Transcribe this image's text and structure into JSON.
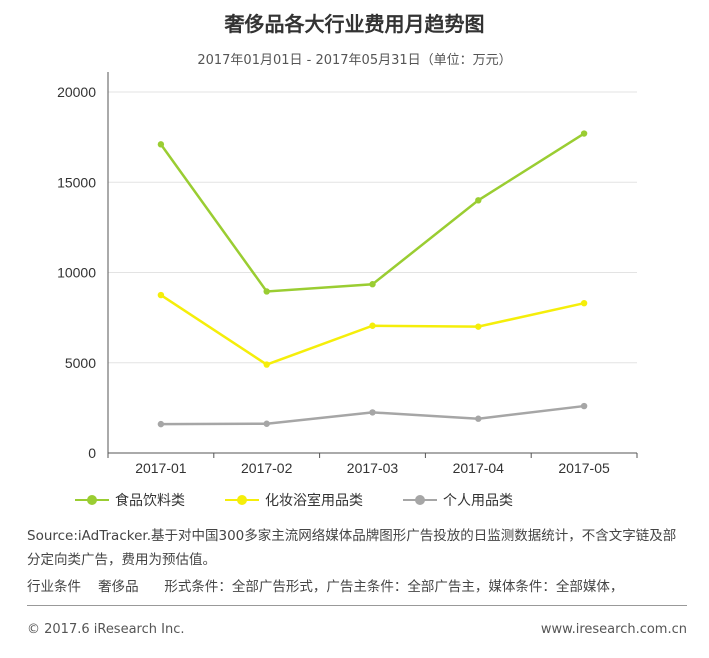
{
  "header": {
    "title": "奢侈品各大行业费用月趋势图",
    "subtitle": "2017年01月01日 - 2017年05月31日（单位：万元）"
  },
  "chart_data": {
    "type": "line",
    "title": "奢侈品各大行业费用月趋势图",
    "subtitle": "2017年01月01日 - 2017年05月31日（单位：万元）",
    "categories": [
      "2017-01",
      "2017-02",
      "2017-03",
      "2017-04",
      "2017-05"
    ],
    "ylim": [
      0,
      20000
    ],
    "yticks": [
      0,
      5000,
      10000,
      15000,
      20000
    ],
    "grid": true,
    "legend_position": "bottom",
    "series": [
      {
        "name": "食品饮料类",
        "color": "#9ACD32",
        "values": [
          17100,
          8950,
          9350,
          14000,
          17700
        ]
      },
      {
        "name": "化妆浴室用品类",
        "color": "#F5EE0A",
        "values": [
          8750,
          4900,
          7050,
          7000,
          8300
        ]
      },
      {
        "name": "个人用品类",
        "color": "#A6A6A6",
        "values": [
          1600,
          1620,
          2250,
          1900,
          2600
        ]
      }
    ]
  },
  "notes": {
    "source": "Source:iAdTracker.基于对中国300多家主流网络媒体品牌图形广告投放的日监测数据统计，不含文字链及部分定向类广告，费用为预估值。",
    "conditions": "行业条件    奢侈品      形式条件：全部广告形式，广告主条件：全部广告主，媒体条件：全部媒体，"
  },
  "footer": {
    "copyright": "© 2017.6 iResearch Inc.",
    "website": "www.iresearch.com.cn"
  }
}
